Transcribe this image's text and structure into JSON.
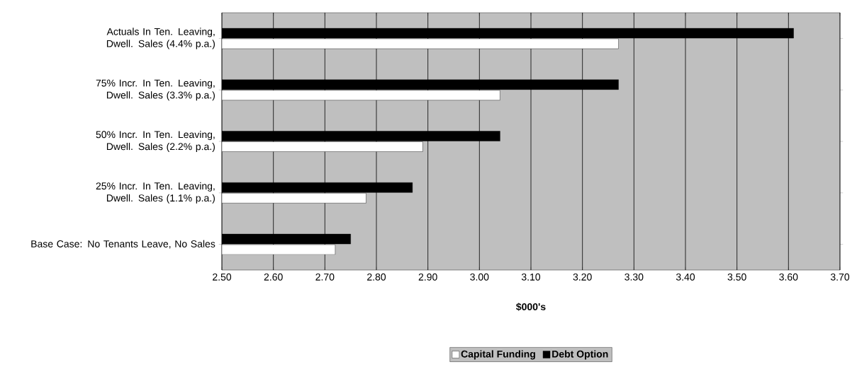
{
  "chart_data": {
    "type": "bar",
    "orientation": "horizontal",
    "xlabel": "$000's",
    "categories": [
      "Actuals In Ten. Leaving, Dwell. Sales (4.4% p.a.)",
      "75% Incr. In Ten. Leaving, Dwell. Sales (3.3% p.a.)",
      "50% Incr. In Ten. Leaving, Dwell. Sales (2.2% p.a.)",
      "25% Incr. In Ten. Leaving, Dwell. Sales (1.1% p.a.)",
      "Base Case: No Tenants Leave, No Sales"
    ],
    "series": [
      {
        "name": "Capital Funding",
        "color": "#ffffff",
        "values": [
          3.27,
          3.04,
          2.89,
          2.78,
          2.72
        ]
      },
      {
        "name": "Debt Option",
        "color": "#000000",
        "values": [
          3.61,
          3.27,
          3.04,
          2.87,
          2.75
        ]
      }
    ],
    "xlim": [
      2.5,
      3.7
    ],
    "xticks": [
      {
        "value": 2.5,
        "label": "2.50"
      },
      {
        "value": 2.6,
        "label": "2.60"
      },
      {
        "value": 2.7,
        "label": "2.70"
      },
      {
        "value": 2.8,
        "label": "2.80"
      },
      {
        "value": 2.9,
        "label": "2.90"
      },
      {
        "value": 3.0,
        "label": "3.00"
      },
      {
        "value": 3.1,
        "label": "3.10"
      },
      {
        "value": 3.2,
        "label": "3.20"
      },
      {
        "value": 3.3,
        "label": "3.30"
      },
      {
        "value": 3.4,
        "label": "3.40"
      },
      {
        "value": 3.5,
        "label": "3.50"
      },
      {
        "value": 3.6,
        "label": "3.60"
      },
      {
        "value": 3.7,
        "label": "3.70"
      }
    ],
    "grid": "x",
    "legend": "bottom"
  }
}
